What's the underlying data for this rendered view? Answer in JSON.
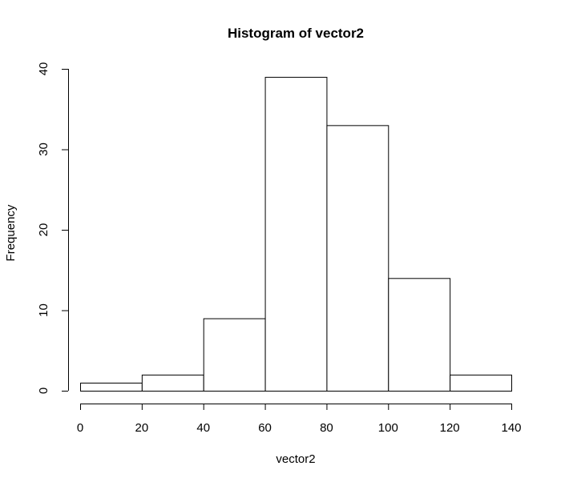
{
  "chart_data": {
    "type": "bar",
    "title": "Histogram of vector2",
    "xlabel": "vector2",
    "ylabel": "Frequency",
    "bins": [
      {
        "from": 0,
        "to": 20,
        "count": 1
      },
      {
        "from": 20,
        "to": 40,
        "count": 2
      },
      {
        "from": 40,
        "to": 60,
        "count": 9
      },
      {
        "from": 60,
        "to": 80,
        "count": 39
      },
      {
        "from": 80,
        "to": 100,
        "count": 33
      },
      {
        "from": 100,
        "to": 120,
        "count": 14
      },
      {
        "from": 120,
        "to": 140,
        "count": 2
      }
    ],
    "xlim": [
      0,
      140
    ],
    "ylim": [
      0,
      40
    ],
    "x_ticks": [
      0,
      20,
      40,
      60,
      80,
      100,
      120,
      140
    ],
    "y_ticks": [
      0,
      10,
      20,
      30,
      40
    ],
    "grid": false,
    "legend": "none"
  }
}
